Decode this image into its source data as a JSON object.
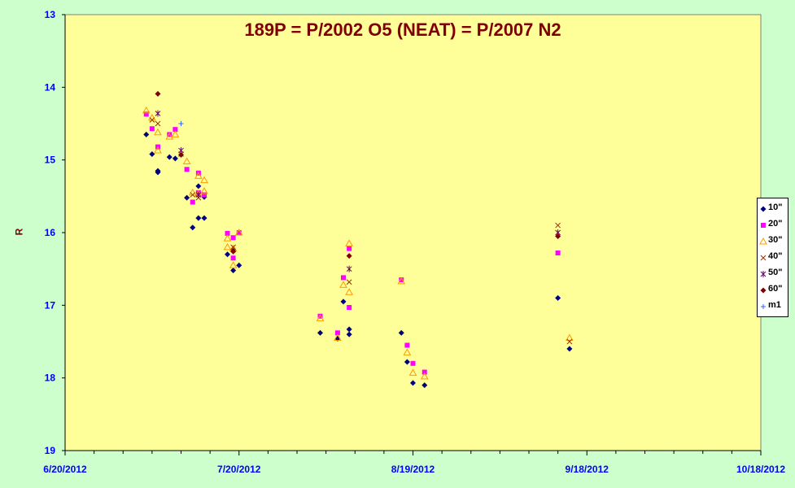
{
  "chart_data": {
    "type": "scatter",
    "title": "189P = P/2002 O5 (NEAT) = P/2007 N2",
    "xlabel": "",
    "ylabel": "R",
    "x_axis": {
      "type": "date",
      "min": "2012-06-20",
      "max": "2012-10-18",
      "tick_labels": [
        "6/20/2012",
        "7/20/2012",
        "8/19/2012",
        "9/18/2012",
        "10/18/2012"
      ],
      "minor_ticks_every_days": 5
    },
    "y_axis": {
      "inverted": true,
      "min": 13,
      "max": 19,
      "tick_labels": [
        "13",
        "14",
        "15",
        "16",
        "17",
        "18",
        "19"
      ]
    },
    "grid": false,
    "legend_position": "right",
    "colors": {
      "plot_background": "#ffff99",
      "page_background": "#ccffcc",
      "title": "#800000",
      "axis_labels": "#0000ff"
    },
    "series": [
      {
        "name": "10\"",
        "marker": "diamond",
        "color": "#000080",
        "points": [
          [
            "2012-07-04",
            14.65
          ],
          [
            "2012-07-05",
            14.92
          ],
          [
            "2012-07-06",
            15.15
          ],
          [
            "2012-07-06",
            15.17
          ],
          [
            "2012-07-08",
            14.96
          ],
          [
            "2012-07-09",
            14.98
          ],
          [
            "2012-07-11",
            15.52
          ],
          [
            "2012-07-12",
            15.93
          ],
          [
            "2012-07-13",
            15.36
          ],
          [
            "2012-07-13",
            15.8
          ],
          [
            "2012-07-14",
            15.8
          ],
          [
            "2012-07-14",
            15.51
          ],
          [
            "2012-07-18",
            16.3
          ],
          [
            "2012-07-19",
            16.52
          ],
          [
            "2012-07-19",
            16.25
          ],
          [
            "2012-07-20",
            16.45
          ],
          [
            "2012-08-03",
            17.38
          ],
          [
            "2012-08-06",
            17.46
          ],
          [
            "2012-08-07",
            16.95
          ],
          [
            "2012-08-08",
            17.33
          ],
          [
            "2012-08-08",
            17.4
          ],
          [
            "2012-08-17",
            17.38
          ],
          [
            "2012-08-18",
            17.78
          ],
          [
            "2012-08-19",
            18.07
          ],
          [
            "2012-08-21",
            18.1
          ],
          [
            "2012-09-13",
            16.9
          ],
          [
            "2012-09-15",
            17.6
          ]
        ]
      },
      {
        "name": "20\"",
        "marker": "square",
        "color": "#ff00ff",
        "points": [
          [
            "2012-07-04",
            14.37
          ],
          [
            "2012-07-05",
            14.57
          ],
          [
            "2012-07-06",
            14.82
          ],
          [
            "2012-07-08",
            14.65
          ],
          [
            "2012-07-09",
            14.58
          ],
          [
            "2012-07-11",
            15.13
          ],
          [
            "2012-07-12",
            15.58
          ],
          [
            "2012-07-13",
            15.18
          ],
          [
            "2012-07-13",
            15.45
          ],
          [
            "2012-07-14",
            15.48
          ],
          [
            "2012-07-18",
            16.01
          ],
          [
            "2012-07-19",
            16.07
          ],
          [
            "2012-07-19",
            16.35
          ],
          [
            "2012-07-20",
            16.0
          ],
          [
            "2012-08-03",
            17.15
          ],
          [
            "2012-08-06",
            17.38
          ],
          [
            "2012-08-07",
            16.62
          ],
          [
            "2012-08-08",
            17.03
          ],
          [
            "2012-08-08",
            16.22
          ],
          [
            "2012-08-17",
            16.65
          ],
          [
            "2012-08-18",
            17.55
          ],
          [
            "2012-08-19",
            17.8
          ],
          [
            "2012-08-21",
            17.92
          ],
          [
            "2012-09-13",
            16.28
          ]
        ]
      },
      {
        "name": "30\"",
        "marker": "triangle",
        "color": "#ff9900",
        "points": [
          [
            "2012-07-04",
            14.32
          ],
          [
            "2012-07-05",
            14.42
          ],
          [
            "2012-07-06",
            14.62
          ],
          [
            "2012-07-06",
            14.87
          ],
          [
            "2012-07-08",
            14.68
          ],
          [
            "2012-07-09",
            14.65
          ],
          [
            "2012-07-11",
            15.02
          ],
          [
            "2012-07-12",
            15.45
          ],
          [
            "2012-07-13",
            15.22
          ],
          [
            "2012-07-13",
            15.47
          ],
          [
            "2012-07-14",
            15.28
          ],
          [
            "2012-07-14",
            15.43
          ],
          [
            "2012-07-18",
            16.08
          ],
          [
            "2012-07-18",
            16.2
          ],
          [
            "2012-07-19",
            16.22
          ],
          [
            "2012-07-19",
            16.45
          ],
          [
            "2012-07-20",
            16.0
          ],
          [
            "2012-08-03",
            17.18
          ],
          [
            "2012-08-06",
            17.45
          ],
          [
            "2012-08-07",
            16.72
          ],
          [
            "2012-08-08",
            16.15
          ],
          [
            "2012-08-08",
            16.82
          ],
          [
            "2012-08-17",
            16.67
          ],
          [
            "2012-08-18",
            17.65
          ],
          [
            "2012-08-19",
            17.93
          ],
          [
            "2012-08-21",
            17.98
          ],
          [
            "2012-09-15",
            17.45
          ]
        ]
      },
      {
        "name": "40\"",
        "marker": "x",
        "color": "#993300",
        "points": [
          [
            "2012-07-05",
            14.45
          ],
          [
            "2012-07-06",
            14.5
          ],
          [
            "2012-07-10",
            14.92
          ],
          [
            "2012-07-12",
            15.48
          ],
          [
            "2012-07-13",
            15.52
          ],
          [
            "2012-07-19",
            16.2
          ],
          [
            "2012-08-08",
            16.68
          ],
          [
            "2012-09-13",
            15.9
          ],
          [
            "2012-09-15",
            17.5
          ]
        ]
      },
      {
        "name": "50\"",
        "marker": "star",
        "color": "#660066",
        "points": [
          [
            "2012-07-06",
            14.36
          ],
          [
            "2012-07-10",
            14.87
          ],
          [
            "2012-07-13",
            15.48
          ],
          [
            "2012-08-08",
            16.5
          ],
          [
            "2012-09-13",
            16.0
          ]
        ]
      },
      {
        "name": "60\"",
        "marker": "diamond",
        "color": "#800000",
        "points": [
          [
            "2012-07-06",
            14.09
          ],
          [
            "2012-07-10",
            14.93
          ],
          [
            "2012-07-19",
            16.26
          ],
          [
            "2012-08-08",
            16.32
          ],
          [
            "2012-09-13",
            16.05
          ]
        ]
      },
      {
        "name": "m1",
        "marker": "plus",
        "color": "#3366ff",
        "points": [
          [
            "2012-07-10",
            14.5
          ]
        ]
      }
    ]
  }
}
